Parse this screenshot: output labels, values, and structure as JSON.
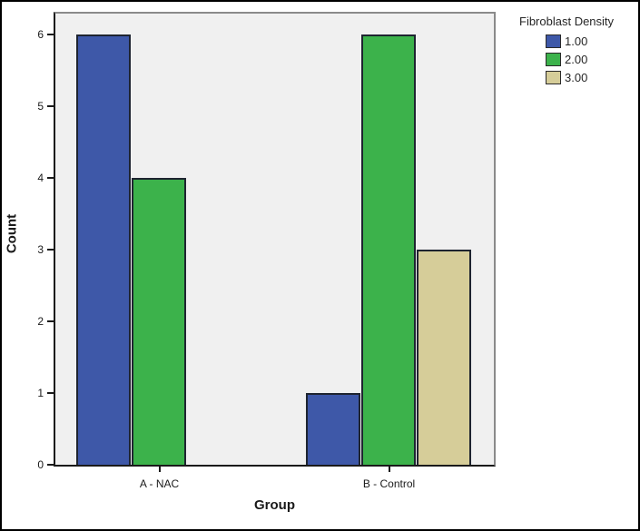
{
  "chart_data": {
    "type": "bar",
    "title": "",
    "xlabel": "Group",
    "ylabel": "Count",
    "categories": [
      "A - NAC",
      "B - Control"
    ],
    "series": [
      {
        "name": "1.00",
        "color": "#3e58a8",
        "values": [
          6,
          1
        ]
      },
      {
        "name": "2.00",
        "color": "#3cb24b",
        "values": [
          4,
          6
        ]
      },
      {
        "name": "3.00",
        "color": "#d6cd99",
        "values": [
          0,
          3
        ]
      }
    ],
    "y_ticks": [
      0,
      1,
      2,
      3,
      4,
      5,
      6
    ],
    "ylim": [
      0,
      6.3
    ],
    "legend_title": "Fibroblast Density",
    "legend_position": "outside-top-right",
    "plot_background": "#f0f0f0",
    "grid": false,
    "bar_border_color": "#1e2430"
  },
  "layout_labels": {
    "x_axis_title": "Group",
    "y_axis_title": "Count"
  }
}
